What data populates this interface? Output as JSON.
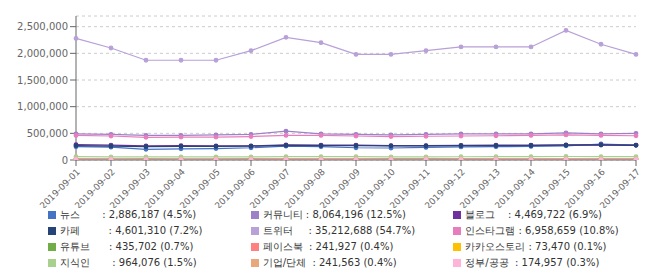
{
  "chart_data": {
    "type": "line",
    "categories": [
      "2019-09-01",
      "2019-09-02",
      "2019-09-03",
      "2019-09-04",
      "2019-09-05",
      "2019-09-06",
      "2019-09-07",
      "2019-09-08",
      "2019-09-09",
      "2019-09-10",
      "2019-09-11",
      "2019-09-12",
      "2019-09-13",
      "2019-09-14",
      "2019-09-15",
      "2019-09-16",
      "2019-09-17"
    ],
    "series": [
      {
        "name": "뉴스       : 2,886,187 (4.5%)",
        "color": "#4472c4",
        "values": [
          250000,
          240000,
          200000,
          210000,
          215000,
          230000,
          260000,
          250000,
          230000,
          225000,
          235000,
          245000,
          250000,
          255000,
          265000,
          300000,
          280000
        ]
      },
      {
        "name": "커뮤니티 : 8,064,196 (12.5%)",
        "color": "#9e80c8",
        "values": [
          490000,
          480000,
          460000,
          460000,
          470000,
          480000,
          540000,
          490000,
          480000,
          470000,
          480000,
          490000,
          490000,
          490000,
          510000,
          490000,
          500000
        ]
      },
      {
        "name": "블로그    : 4,469,722 (6.9%)",
        "color": "#7030a0",
        "values": [
          290000,
          280000,
          265000,
          270000,
          265000,
          265000,
          285000,
          280000,
          280000,
          270000,
          270000,
          275000,
          280000,
          280000,
          285000,
          290000,
          280000
        ]
      },
      {
        "name": "카페         : 4,601,310 (7.2%)",
        "color": "#264478",
        "values": [
          270000,
          260000,
          250000,
          255000,
          255000,
          260000,
          275000,
          270000,
          268000,
          265000,
          265000,
          268000,
          270000,
          272000,
          278000,
          280000,
          275000
        ]
      },
      {
        "name": "트위터     : 35,212,688 (54.7%)",
        "color": "#b8a0d8",
        "values": [
          2280000,
          2100000,
          1870000,
          1870000,
          1870000,
          2050000,
          2300000,
          2200000,
          1980000,
          1980000,
          2050000,
          2120000,
          2120000,
          2120000,
          2430000,
          2170000,
          1980000
        ]
      },
      {
        "name": "인스타그램 : 6,958,659 (10.8%)",
        "color": "#e87dbe",
        "values": [
          460000,
          450000,
          425000,
          430000,
          430000,
          440000,
          460000,
          460000,
          450000,
          440000,
          445000,
          450000,
          455000,
          460000,
          470000,
          460000,
          455000
        ]
      },
      {
        "name": "유튜브      : 435,702 (0.7%)",
        "color": "#70ad47",
        "values": [
          25000,
          23000,
          21000,
          22000,
          23000,
          24000,
          26000,
          27000,
          26000,
          25000,
          24000,
          25000,
          26000,
          27000,
          28000,
          27000,
          26000
        ]
      },
      {
        "name": "페이스북  : 241,927 (0.4%)",
        "color": "#ff8080",
        "values": [
          15000,
          14000,
          13000,
          14000,
          14000,
          14500,
          16000,
          16000,
          15000,
          14500,
          14500,
          15000,
          15500,
          16000,
          17000,
          16000,
          15500
        ]
      },
      {
        "name": "카카오스토리 : 73,470 (0.1%)",
        "color": "#ffc000",
        "values": [
          5500,
          5200,
          4800,
          5000,
          5100,
          5200,
          5500,
          5500,
          5300,
          5100,
          5100,
          5200,
          5300,
          5400,
          5600,
          5500,
          5300
        ]
      },
      {
        "name": "지식인       : 964,076 (1.5%)",
        "color": "#a9d18e",
        "values": [
          62000,
          60000,
          57000,
          58000,
          58000,
          59000,
          63000,
          64000,
          62000,
          60000,
          60000,
          61000,
          62000,
          64000,
          66000,
          64000,
          62000
        ]
      },
      {
        "name": "기업/단체  : 241,563 (0.4%)",
        "color": "#e8a87c",
        "values": [
          15000,
          14000,
          13200,
          13500,
          13800,
          14200,
          15000,
          15200,
          14800,
          14400,
          14200,
          14500,
          15000,
          15500,
          16000,
          15500,
          15000
        ]
      },
      {
        "name": "정부/공공  : 174,957 (0.3%)",
        "color": "#ffb3d9",
        "values": [
          11000,
          10500,
          9800,
          10000,
          10200,
          10500,
          11000,
          11200,
          10800,
          10500,
          10300,
          10500,
          11000,
          11200,
          11500,
          11200,
          10800
        ]
      }
    ],
    "ylim": [
      0,
      2700000
    ],
    "yticks": [
      0,
      {
        "value": 500000,
        "label": "500,000"
      },
      {
        "value": 1000000,
        "label": "1,000,000"
      },
      {
        "value": 1500000,
        "label": "1,500,000"
      },
      {
        "value": 2000000,
        "label": "2,000,000"
      },
      {
        "value": 2500000,
        "label": "2,500,000"
      }
    ],
    "grid": true,
    "legend": "bottom",
    "marker": "circle"
  }
}
